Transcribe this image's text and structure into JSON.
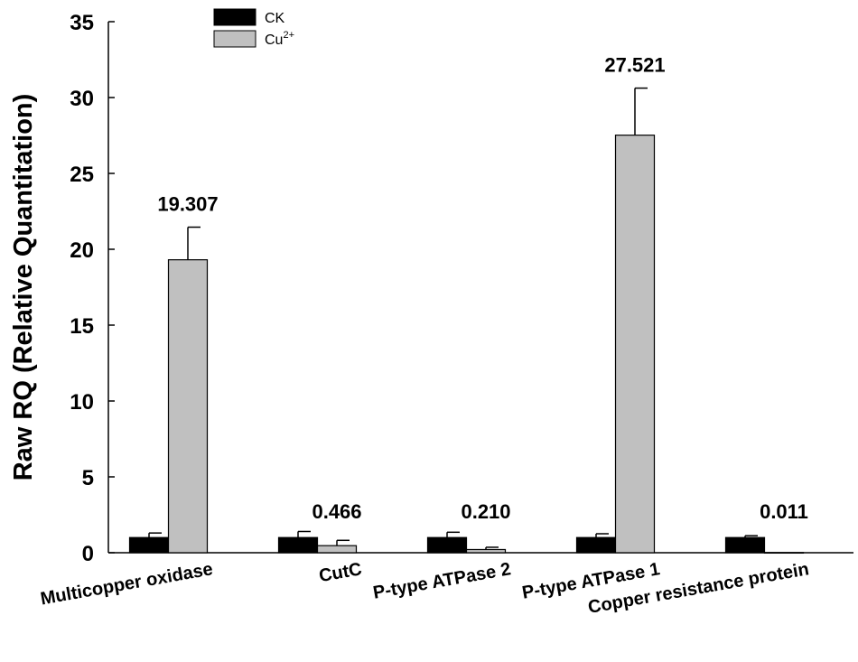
{
  "chart_data": {
    "type": "bar",
    "ylabel": "Raw RQ (Relative Quantitation)",
    "xlabel": "",
    "ylim": [
      0,
      35
    ],
    "yticks": [
      0,
      5,
      10,
      15,
      20,
      25,
      30,
      35
    ],
    "categories": [
      "Multicopper oxidase",
      "CutC",
      "P-type ATPase 2",
      "P-type ATPase 1",
      "Copper resistance protein"
    ],
    "series": [
      {
        "name": "CK",
        "base": "CK",
        "sup": "",
        "color": "#000000",
        "values": [
          1.0,
          1.0,
          1.0,
          1.0,
          1.0
        ],
        "errors": [
          0.3,
          0.4,
          0.35,
          0.25,
          0.12
        ]
      },
      {
        "name": "Cu2+",
        "base": "Cu",
        "sup": "2+",
        "color": "#c0c0c0",
        "values": [
          19.307,
          0.466,
          0.21,
          27.521,
          0.011
        ],
        "errors": [
          2.15,
          0.35,
          0.15,
          3.1,
          0.0
        ]
      }
    ],
    "data_labels": [
      "19.307",
      "0.466",
      "0.210",
      "27.521",
      "0.011"
    ],
    "legend_position": "top-left",
    "grid": false
  }
}
